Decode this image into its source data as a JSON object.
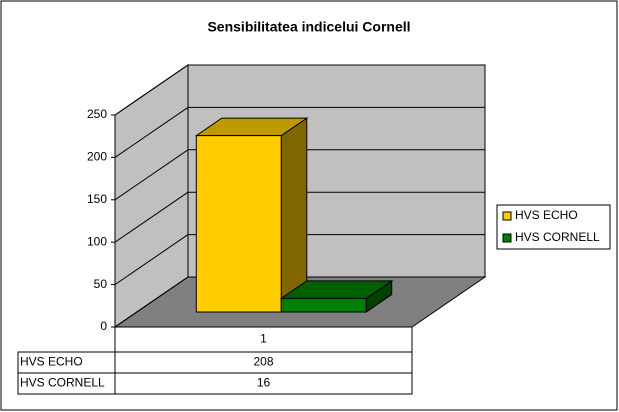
{
  "chart_data": {
    "type": "bar3d",
    "title": "Sensibilitatea indicelui Cornell",
    "categories": [
      "1"
    ],
    "series": [
      {
        "name": "HVS ECHO",
        "color": "#ffcc00",
        "values": [
          208
        ]
      },
      {
        "name": "HVS CORNELL",
        "color": "#008000",
        "values": [
          16
        ]
      }
    ],
    "ylim": [
      0,
      250
    ],
    "yticks": [
      0,
      50,
      100,
      150,
      200,
      250
    ],
    "grid": true,
    "legend": "right",
    "data_table": true
  }
}
